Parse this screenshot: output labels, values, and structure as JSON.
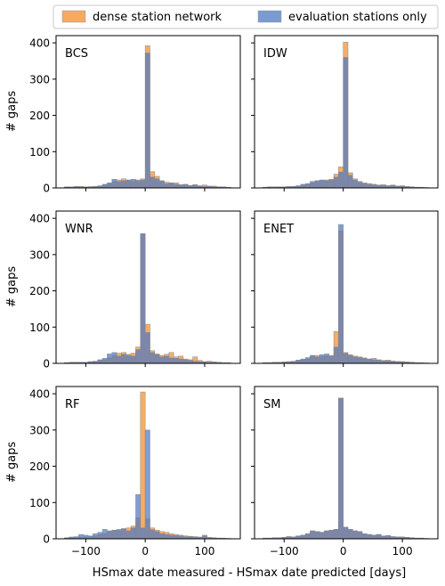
{
  "figure": {
    "xlabel": "HSmax date measured - HSmax date predicted [days]",
    "ylabel": "# gaps",
    "legend": {
      "position": "top-center",
      "entries": [
        {
          "label": "dense station network",
          "color": "#f28e2b"
        },
        {
          "label": "evaluation stations only",
          "color": "#4e79c3"
        }
      ]
    }
  },
  "chart_data": [
    {
      "type": "bar",
      "panel": "BCS",
      "xlim": [
        -150,
        160
      ],
      "ylim": [
        0,
        420
      ],
      "xticks": [
        -100,
        0,
        100
      ],
      "yticks": [
        0,
        100,
        200,
        300,
        400
      ],
      "grid": false,
      "bin_width": 8,
      "bins": [
        -136,
        -128,
        -120,
        -112,
        -104,
        -96,
        -88,
        -80,
        -72,
        -64,
        -56,
        -48,
        -40,
        -32,
        -24,
        -16,
        -8,
        0,
        8,
        16,
        24,
        32,
        40,
        48,
        56,
        64,
        72,
        80,
        88,
        96,
        104,
        112,
        120,
        128,
        136
      ],
      "series": [
        {
          "name": "dense station network",
          "values": [
            2,
            3,
            3,
            4,
            2,
            4,
            3,
            6,
            8,
            12,
            18,
            22,
            25,
            20,
            18,
            22,
            25,
            392,
            45,
            32,
            18,
            16,
            12,
            14,
            9,
            8,
            7,
            9,
            5,
            8,
            4,
            5,
            2,
            3,
            2
          ]
        },
        {
          "name": "evaluation stations only",
          "values": [
            3,
            2,
            4,
            3,
            3,
            2,
            4,
            5,
            10,
            14,
            24,
            18,
            20,
            22,
            24,
            20,
            22,
            372,
            30,
            25,
            20,
            12,
            14,
            10,
            8,
            10,
            6,
            8,
            6,
            4,
            5,
            3,
            3,
            2,
            1
          ]
        }
      ]
    },
    {
      "type": "bar",
      "panel": "IDW",
      "xlim": [
        -150,
        160
      ],
      "ylim": [
        0,
        420
      ],
      "xticks": [
        -100,
        0,
        100
      ],
      "yticks": [
        0,
        100,
        200,
        300,
        400
      ],
      "grid": false,
      "bin_width": 8,
      "bins": [
        -136,
        -128,
        -120,
        -112,
        -104,
        -96,
        -88,
        -80,
        -72,
        -64,
        -56,
        -48,
        -40,
        -32,
        -24,
        -16,
        -8,
        0,
        8,
        16,
        24,
        32,
        40,
        48,
        56,
        64,
        72,
        80,
        88,
        96,
        104,
        112,
        120,
        128,
        136
      ],
      "series": [
        {
          "name": "dense station network",
          "values": [
            2,
            2,
            3,
            2,
            3,
            4,
            3,
            5,
            8,
            10,
            14,
            18,
            20,
            22,
            24,
            38,
            58,
            402,
            42,
            25,
            18,
            14,
            12,
            10,
            8,
            9,
            6,
            8,
            5,
            6,
            4,
            3,
            2,
            2,
            1
          ]
        },
        {
          "name": "evaluation stations only",
          "values": [
            2,
            3,
            2,
            3,
            2,
            3,
            4,
            6,
            10,
            12,
            18,
            20,
            22,
            20,
            22,
            30,
            44,
            360,
            35,
            22,
            16,
            12,
            10,
            9,
            8,
            7,
            6,
            7,
            5,
            5,
            3,
            3,
            2,
            1,
            1
          ]
        }
      ]
    },
    {
      "type": "bar",
      "panel": "WNR",
      "xlim": [
        -150,
        160
      ],
      "ylim": [
        0,
        420
      ],
      "xticks": [
        -100,
        0,
        100
      ],
      "yticks": [
        0,
        100,
        200,
        300,
        400
      ],
      "grid": false,
      "bin_width": 8,
      "bins": [
        -136,
        -128,
        -120,
        -112,
        -104,
        -96,
        -88,
        -80,
        -72,
        -64,
        -56,
        -48,
        -40,
        -32,
        -24,
        -16,
        -8,
        0,
        8,
        16,
        24,
        32,
        40,
        48,
        56,
        64,
        72,
        80,
        88,
        96,
        104,
        112,
        120,
        128,
        136
      ],
      "series": [
        {
          "name": "dense station network",
          "values": [
            2,
            3,
            2,
            3,
            2,
            4,
            5,
            8,
            10,
            15,
            22,
            28,
            30,
            25,
            28,
            45,
            355,
            108,
            35,
            26,
            22,
            25,
            30,
            18,
            20,
            12,
            10,
            18,
            8,
            5,
            6,
            4,
            3,
            2,
            2
          ]
        },
        {
          "name": "evaluation stations only",
          "values": [
            2,
            2,
            3,
            3,
            3,
            5,
            6,
            10,
            14,
            26,
            30,
            20,
            25,
            22,
            20,
            38,
            358,
            85,
            30,
            24,
            18,
            20,
            15,
            14,
            12,
            10,
            8,
            6,
            5,
            4,
            3,
            3,
            2,
            1,
            1
          ]
        }
      ]
    },
    {
      "type": "bar",
      "panel": "ENET",
      "xlim": [
        -150,
        160
      ],
      "ylim": [
        0,
        420
      ],
      "xticks": [
        -100,
        0,
        100
      ],
      "yticks": [
        0,
        100,
        200,
        300,
        400
      ],
      "grid": false,
      "bin_width": 8,
      "bins": [
        -136,
        -128,
        -120,
        -112,
        -104,
        -96,
        -88,
        -80,
        -72,
        -64,
        -56,
        -48,
        -40,
        -32,
        -24,
        -16,
        -8,
        0,
        8,
        16,
        24,
        32,
        40,
        48,
        56,
        64,
        72,
        80,
        88,
        96,
        104,
        112,
        120,
        128,
        136
      ],
      "series": [
        {
          "name": "dense station network",
          "values": [
            2,
            2,
            3,
            3,
            4,
            5,
            6,
            8,
            10,
            12,
            20,
            22,
            18,
            20,
            22,
            88,
            365,
            30,
            24,
            20,
            18,
            15,
            12,
            14,
            10,
            8,
            9,
            6,
            5,
            5,
            4,
            3,
            2,
            2,
            1
          ]
        },
        {
          "name": "evaluation stations only",
          "values": [
            2,
            2,
            2,
            3,
            3,
            4,
            5,
            9,
            12,
            16,
            22,
            18,
            24,
            26,
            20,
            45,
            383,
            28,
            22,
            18,
            16,
            14,
            12,
            10,
            9,
            8,
            7,
            6,
            5,
            4,
            3,
            3,
            2,
            1,
            1
          ]
        }
      ]
    },
    {
      "type": "bar",
      "panel": "RF",
      "xlim": [
        -150,
        160
      ],
      "ylim": [
        0,
        420
      ],
      "xticks": [
        -100,
        0,
        100
      ],
      "yticks": [
        0,
        100,
        200,
        300,
        400
      ],
      "grid": false,
      "bin_width": 8,
      "bins": [
        -136,
        -128,
        -120,
        -112,
        -104,
        -96,
        -88,
        -80,
        -72,
        -64,
        -56,
        -48,
        -40,
        -32,
        -24,
        -16,
        -8,
        0,
        8,
        16,
        24,
        32,
        40,
        48,
        56,
        64,
        72,
        80,
        88,
        96,
        104,
        112,
        120,
        128,
        136
      ],
      "series": [
        {
          "name": "dense station network",
          "values": [
            2,
            3,
            3,
            4,
            5,
            6,
            8,
            12,
            14,
            20,
            24,
            22,
            28,
            30,
            35,
            58,
            405,
            55,
            30,
            24,
            20,
            18,
            14,
            12,
            10,
            8,
            7,
            6,
            5,
            10,
            4,
            3,
            2,
            2,
            1
          ]
        },
        {
          "name": "evaluation stations only",
          "values": [
            3,
            5,
            6,
            12,
            10,
            8,
            14,
            18,
            26,
            22,
            24,
            26,
            28,
            22,
            30,
            122,
            30,
            300,
            25,
            20,
            14,
            12,
            10,
            9,
            8,
            6,
            6,
            5,
            4,
            8,
            3,
            2,
            2,
            1,
            1
          ]
        }
      ]
    },
    {
      "type": "bar",
      "panel": "SM",
      "xlim": [
        -150,
        160
      ],
      "ylim": [
        0,
        420
      ],
      "xticks": [
        -100,
        0,
        100
      ],
      "yticks": [
        0,
        100,
        200,
        300,
        400
      ],
      "grid": false,
      "bin_width": 8,
      "bins": [
        -136,
        -128,
        -120,
        -112,
        -104,
        -96,
        -88,
        -80,
        -72,
        -64,
        -56,
        -48,
        -40,
        -32,
        -24,
        -16,
        -8,
        0,
        8,
        16,
        24,
        32,
        40,
        48,
        56,
        64,
        72,
        80,
        88,
        96,
        104,
        112,
        120,
        128,
        136
      ],
      "series": [
        {
          "name": "dense station network",
          "values": [
            2,
            2,
            3,
            3,
            4,
            6,
            5,
            8,
            10,
            14,
            22,
            20,
            18,
            22,
            24,
            26,
            388,
            32,
            26,
            22,
            20,
            14,
            12,
            10,
            12,
            8,
            9,
            6,
            5,
            5,
            4,
            3,
            2,
            2,
            1
          ]
        },
        {
          "name": "evaluation stations only",
          "values": [
            2,
            2,
            3,
            3,
            4,
            6,
            5,
            8,
            10,
            14,
            22,
            20,
            18,
            22,
            24,
            26,
            388,
            32,
            26,
            22,
            20,
            14,
            12,
            10,
            12,
            8,
            9,
            6,
            5,
            5,
            4,
            3,
            2,
            2,
            1
          ]
        }
      ]
    }
  ]
}
